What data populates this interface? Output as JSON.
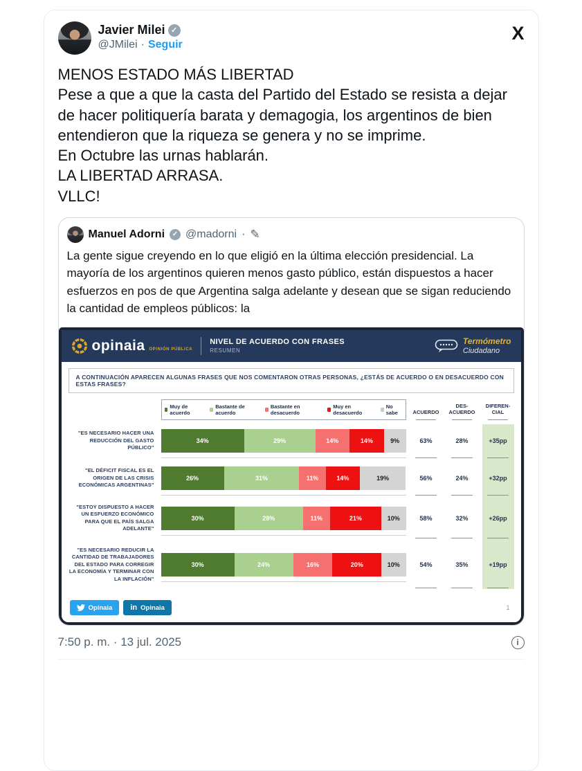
{
  "tweet": {
    "author": {
      "name": "Javier Milei",
      "handle": "@JMilei",
      "separator": "·",
      "follow_label": "Seguir"
    },
    "body": "MENOS ESTADO MÁS LIBERTAD\nPese a que a que la casta del Partido del Estado se resista a dejar de hacer politiquería barata y demagogia, los argentinos de bien entendieron que la riqueza se genera y no se imprime.\nEn Octubre las urnas hablarán.\nLA LIBERTAD ARRASA.\nVLLC!",
    "timestamp": "7:50 p. m. · 13 jul. 2025"
  },
  "quote": {
    "author": {
      "name": "Manuel Adorni",
      "handle": "@madorni",
      "separator": "·"
    },
    "text": "La gente sigue creyendo en lo que eligió en la última elección presidencial. La mayoría de los argentinos quieren menos gasto público, están dispuestos a hacer esfuerzos en pos de que Argentina salga adelante y desean que se sigan reduciendo la cantidad de empleos públicos: la"
  },
  "icons": {
    "x_logo": "X",
    "verified_check": "✓",
    "edit_pencil": "✎",
    "info": "i",
    "linkedin_in": "in"
  },
  "chart_data": {
    "type": "bar",
    "brand": "opinaia",
    "brand_tagline": "OPINIÓN PÚBLICA",
    "title": "NIVEL DE ACUERDO CON FRASES",
    "subtitle": "RESUMEN",
    "badge_line1": "Termómetro",
    "badge_line2": "Ciudadano",
    "question": "A CONTINUACIÓN APARECEN ALGUNAS FRASES QUE NOS COMENTARON OTRAS PERSONAS, ¿ESTÁS DE ACUERDO O EN DESACUERDO CON ESTAS FRASES?",
    "legend": [
      {
        "label": "Muy de acuerdo",
        "color": "#4e7b30"
      },
      {
        "label": "Bastante de acuerdo",
        "color": "#a9d08e"
      },
      {
        "label": "Bastante en desacuerdo",
        "color": "#f4716f"
      },
      {
        "label": "Muy en desacuerdo",
        "color": "#ee1111"
      },
      {
        "label": "No sabe",
        "color": "#c9c9c9"
      }
    ],
    "segment_colors": [
      "#4e7b30",
      "#a9d08e",
      "#f4716f",
      "#ee1111",
      "#d4d4d4"
    ],
    "columns": [
      "ACUERDO",
      "DES- ACUERDO",
      "DIFEREN- CIAL"
    ],
    "rows": [
      {
        "label": "\"ES NECESARIO HACER UNA REDUCCIÓN DEL GASTO PÚBLICO\"",
        "values": [
          34,
          29,
          14,
          14,
          9
        ],
        "acuerdo": "63%",
        "desacuerdo": "28%",
        "diferencial": "+35pp"
      },
      {
        "label": "\"EL DÉFICIT FISCAL ES EL ORIGEN DE LAS CRISIS ECONÓMICAS ARGENTINAS\"",
        "values": [
          26,
          31,
          11,
          14,
          19
        ],
        "acuerdo": "56%",
        "desacuerdo": "24%",
        "diferencial": "+32pp"
      },
      {
        "label": "\"ESTOY DISPUESTO A HACER UN ESFUERZO ECONÓMICO PARA QUE EL PAÍS SALGA ADELANTE\"",
        "values": [
          30,
          28,
          11,
          21,
          10
        ],
        "acuerdo": "58%",
        "desacuerdo": "32%",
        "diferencial": "+26pp"
      },
      {
        "label": "\"ES NECESARIO REDUCIR LA CANTIDAD DE TRABAJADORES DEL ESTADO PARA CORREGIR LA ECONOMÍA Y TERMINAR CON LA INFLACIÓN\"",
        "values": [
          30,
          24,
          16,
          20,
          10
        ],
        "acuerdo": "54%",
        "desacuerdo": "35%",
        "diferencial": "+19pp"
      }
    ],
    "ylim": [
      0,
      100
    ],
    "footer": {
      "twitter_label": "Opinaia",
      "linkedin_label": "Opinaia",
      "page": "1"
    }
  }
}
